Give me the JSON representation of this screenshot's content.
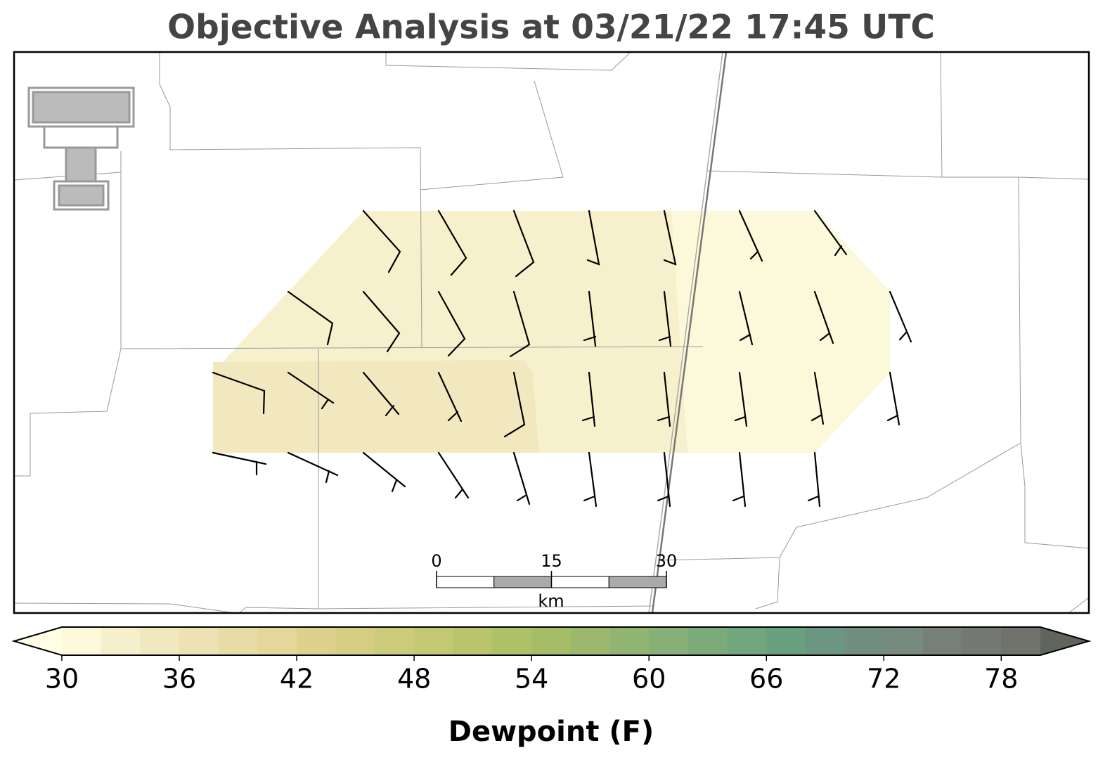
{
  "header": {
    "title": "Objective Analysis at 03/21/22 17:45 UTC"
  },
  "map": {
    "scale_bar": {
      "ticks": [
        0,
        15,
        30
      ],
      "unit": "km"
    }
  },
  "colorbar": {
    "label": "Dewpoint (F)",
    "range": [
      30,
      80
    ],
    "ticks": [
      30,
      36,
      42,
      48,
      54,
      60,
      66,
      72,
      78
    ],
    "under_color": "#fffde6",
    "over_color": "#5f645c",
    "colors": [
      "#fcf8da",
      "#f6efcb",
      "#f1e8c0",
      "#ece2b4",
      "#e8dca6",
      "#e3d79a",
      "#dcd28e",
      "#d4cd82",
      "#cccb7a",
      "#c3c873",
      "#b9c46c",
      "#aec166",
      "#a6bd68",
      "#9bb86e",
      "#90b572",
      "#86b077",
      "#7cab7a",
      "#72a77d",
      "#69a07f",
      "#6b9782",
      "#718e80",
      "#768a7e",
      "#767f78",
      "#747a73",
      "#6f736c"
    ]
  }
}
